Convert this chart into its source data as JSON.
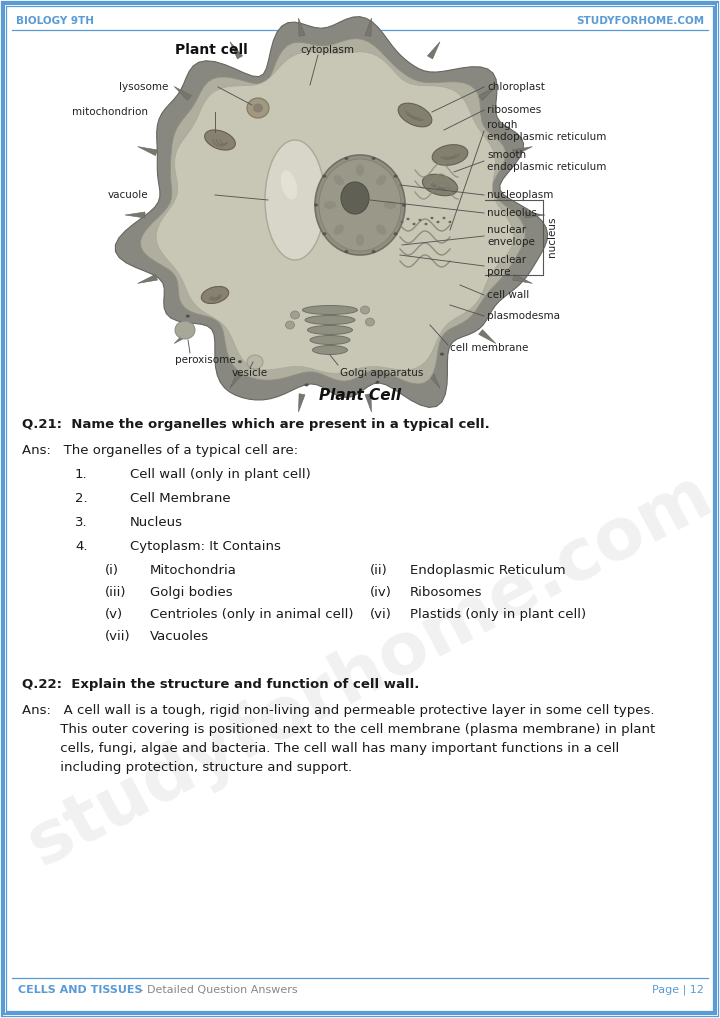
{
  "page_bg": "#ffffff",
  "border_color": "#5b9bd5",
  "header_left": "Biology 9th",
  "header_right": "studyforhome.com",
  "footer_left": "Cells and Tissues",
  "footer_left2": " - Detailed Question Answers",
  "footer_right": "Page | 12",
  "header_text_color": "#5b9bd5",
  "footer_text_color": "#5b9bd5",
  "body_text_color": "#1a1a1a",
  "label_text_color": "#222222",
  "label_font_size": 7.5,
  "q21_question": "Q.21:  Name the organelles which are present in a typical cell.",
  "q21_ans_intro": "Ans:   The organelles of a typical cell are:",
  "q21_list": [
    "Cell wall (only in plant cell)",
    "Cell Membrane",
    "Nucleus",
    "Cytoplasm: It Contains"
  ],
  "q21_sub_items": [
    [
      "(i)",
      "Mitochondria",
      "(ii)",
      "Endoplasmic Reticulum"
    ],
    [
      "(iii)",
      "Golgi bodies",
      "(iv)",
      "Ribosomes"
    ],
    [
      "(v)",
      "Centrioles (only in animal cell)",
      "(vi)",
      "Plastids (only in plant cell)"
    ],
    [
      "(vii)",
      "Vacuoles",
      "",
      ""
    ]
  ],
  "q22_question": "Q.22:  Explain the structure and function of cell wall.",
  "q22_ans_lines": [
    "Ans:   A cell wall is a tough, rigid non-living and permeable protective layer in some cell types.",
    "         This outer covering is positioned next to the cell membrane (plasma membrane) in plant",
    "         cells, fungi, algae and bacteria. The cell wall has many important functions in a cell",
    "         including protection, structure and support."
  ],
  "watermark_text": "studyforhome.com",
  "cell_bg": "#b8b4aa",
  "cell_inner": "#c8c4b4",
  "cell_wall_color": "#8a8a7a",
  "nucleus_color": "#707068",
  "nucleolus_color": "#555550",
  "vacuole_color": "#d0cec0",
  "mito_color": "#909080",
  "chloroplast_color": "#9a9888",
  "er_color": "#888878"
}
